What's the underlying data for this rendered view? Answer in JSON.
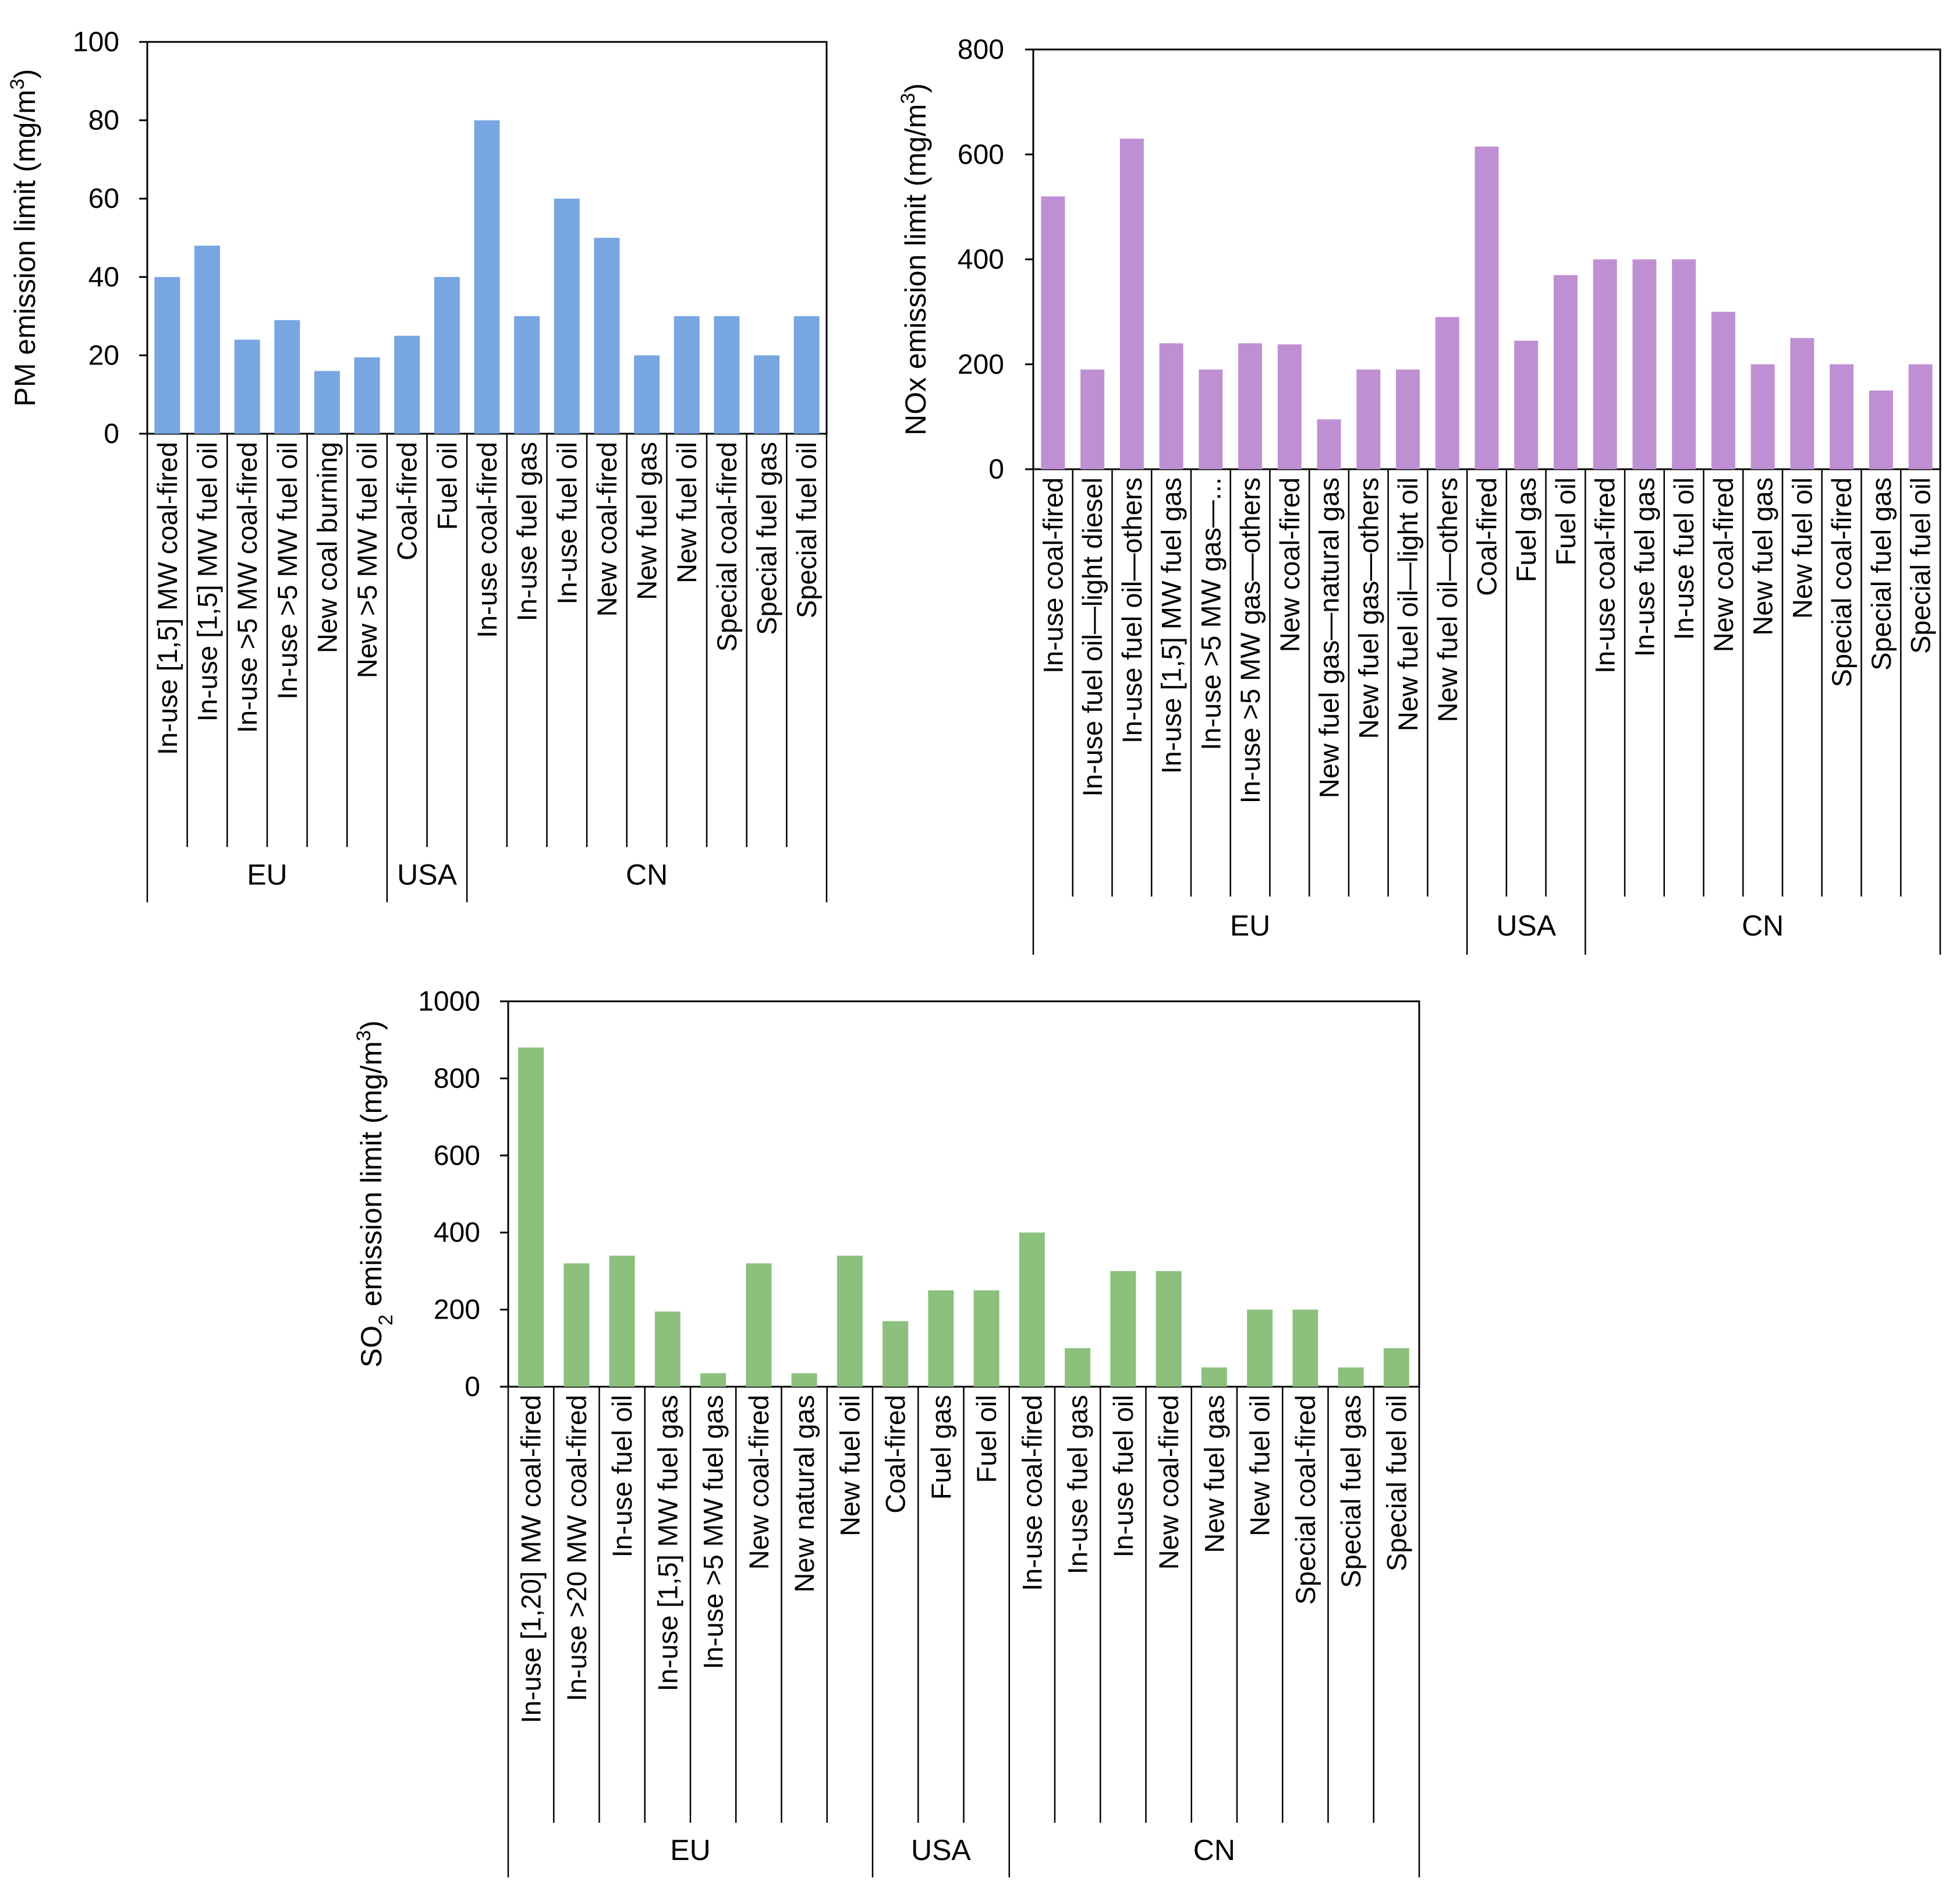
{
  "figure_title": "",
  "chart_data": [
    {
      "type": "bar",
      "color": "#78a6e0",
      "title": "",
      "xlabel": "",
      "ylabel": {
        "prefix": "PM emission limit  (mg/m",
        "sup": "3",
        "suffix": ")"
      },
      "ylim": [
        0,
        100
      ],
      "yticks": [
        0,
        20,
        40,
        60,
        80,
        100
      ],
      "gridlines": false,
      "categories": [
        "In-use [1,5] MW coal-fired",
        "In-use [1,5] MW fuel oil",
        "In-use >5 MW coal-fired",
        "In-use >5 MW fuel oil",
        "New coal burning",
        "New >5 MW fuel oil",
        "Coal-fired",
        "Fuel oil",
        "In-use coal-fired",
        "In-use fuel gas",
        "In-use fuel oil",
        "New coal-fired",
        "New fuel gas",
        "New fuel oil",
        "Special coal-fired",
        "Special fuel gas",
        "Special fuel oil"
      ],
      "values": [
        40,
        48,
        24,
        29,
        16,
        19.5,
        25,
        40,
        80,
        30,
        60,
        50,
        20,
        30,
        30,
        20,
        30
      ],
      "groups": [
        {
          "label": "EU",
          "count": 6
        },
        {
          "label": "USA",
          "count": 2
        },
        {
          "label": "CN",
          "count": 9
        }
      ]
    },
    {
      "type": "bar",
      "color": "#bf8fd3",
      "title": "",
      "xlabel": "",
      "ylabel": {
        "prefix": "NOx emission limit  (mg/m",
        "sup": "3",
        "suffix": ")"
      },
      "ylim": [
        0,
        800
      ],
      "yticks": [
        0,
        200,
        400,
        600,
        800
      ],
      "gridlines": false,
      "categories": [
        "In-use coal-fired",
        "In-use fuel oil—light  diesel",
        "In-use fuel oil—others",
        "In-use [1,5] MW fuel gas",
        "In-use >5 MW gas—...",
        "In-use >5 MW gas—others",
        "New coal-fired",
        "New fuel gas—natural gas",
        "New fuel gas—others",
        "New fuel oil—light oil",
        "New fuel oil—others",
        "Coal-fired",
        "Fuel gas",
        "Fuel oil",
        "In-use coal-fired",
        "In-use fuel gas",
        "In-use fuel oil",
        "New coal-fired",
        "New fuel gas",
        "New fuel oil",
        "Special coal-fired",
        "Special fuel gas",
        "Special fuel oil"
      ],
      "values": [
        520,
        190,
        630,
        240,
        190,
        240,
        238,
        95,
        190,
        190,
        290,
        615,
        245,
        370,
        400,
        400,
        400,
        300,
        200,
        250,
        200,
        150,
        200
      ],
      "groups": [
        {
          "label": "EU",
          "count": 11
        },
        {
          "label": "USA",
          "count": 3
        },
        {
          "label": "CN",
          "count": 9
        }
      ]
    },
    {
      "type": "bar",
      "color": "#8bc07d",
      "title": "",
      "xlabel": "",
      "ylabel": {
        "prefix": "SO",
        "sub": "2",
        "mid": " emission limit  (mg/m",
        "sup": "3",
        "suffix": ")"
      },
      "ylim": [
        0,
        1000
      ],
      "yticks": [
        0,
        200,
        400,
        600,
        800,
        1000
      ],
      "gridlines": false,
      "categories": [
        "In-use [1,20] MW coal-fired",
        "In-use >20 MW coal-fired",
        "In-use fuel oil",
        "In-use [1,5] MW fuel gas",
        "In-use >5 MW fuel gas",
        "New coal-fired",
        "New natural gas",
        "New fuel oil",
        "Coal-fired",
        "Fuel gas",
        "Fuel oil",
        "In-use coal-fired",
        "In-use fuel gas",
        "In-use fuel oil",
        "New coal-fired",
        "New fuel gas",
        "New fuel oil",
        "Special coal-fired",
        "Special fuel gas",
        "Special fuel oil"
      ],
      "values": [
        880,
        320,
        340,
        195,
        35,
        320,
        35,
        340,
        170,
        250,
        250,
        400,
        100,
        300,
        300,
        50,
        200,
        200,
        50,
        100
      ],
      "groups": [
        {
          "label": "EU",
          "count": 8
        },
        {
          "label": "USA",
          "count": 3
        },
        {
          "label": "CN",
          "count": 9
        }
      ]
    }
  ]
}
